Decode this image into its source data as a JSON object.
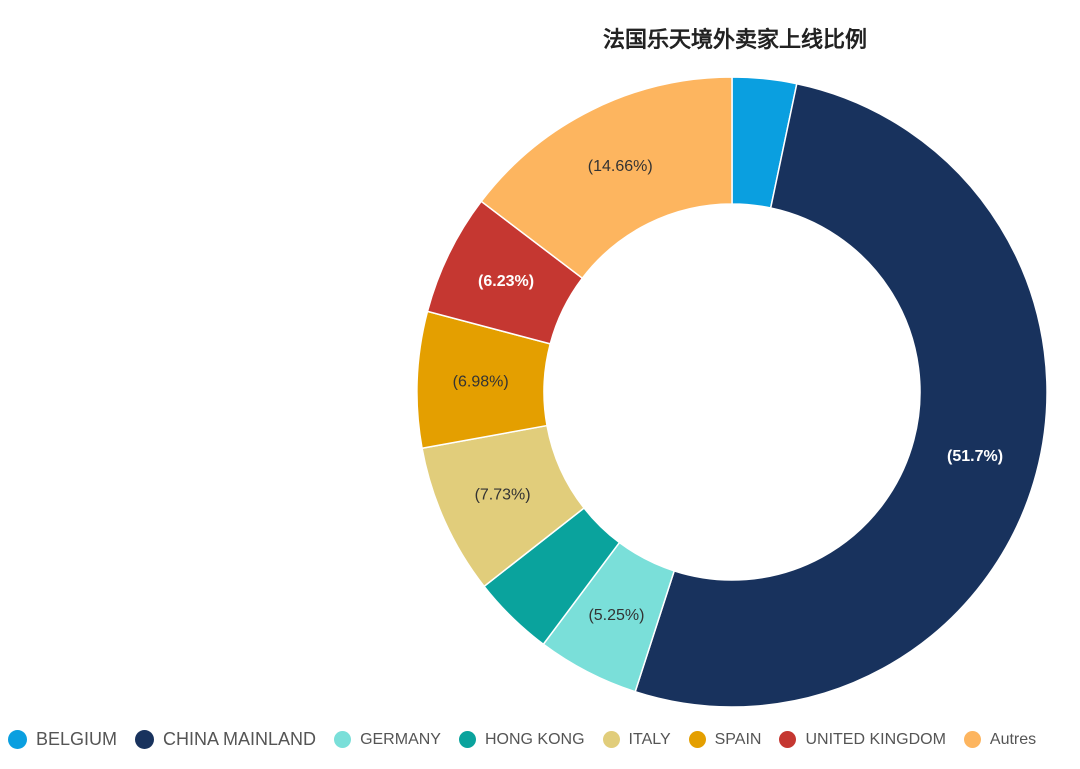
{
  "chart_data": {
    "type": "pie",
    "variant": "donut",
    "title": "法国乐天境外卖家上线比例",
    "categories": [
      "BELGIUM",
      "CHINA MAINLAND",
      "GERMANY",
      "HONG KONG",
      "ITALY",
      "SPAIN",
      "UNITED KINGDOM",
      "Autres"
    ],
    "values": [
      3.3,
      51.7,
      5.25,
      4.2,
      7.73,
      6.98,
      6.23,
      14.66
    ],
    "labels": [
      "",
      "(51.7%)",
      "(5.25%)",
      "",
      "(7.73%)",
      "(6.98%)",
      "(6.23%)",
      "(14.66%)"
    ],
    "colors": [
      "#0a9fe0",
      "#18325d",
      "#7adfd9",
      "#0aa39d",
      "#e1cd7b",
      "#e49f00",
      "#c53731",
      "#fdb55f"
    ],
    "label_colors": [
      "#ffffff",
      "#ffffff",
      "#333333",
      "#ffffff",
      "#333333",
      "#333333",
      "#ffffff",
      "#333333"
    ],
    "legend_position": "bottom"
  }
}
